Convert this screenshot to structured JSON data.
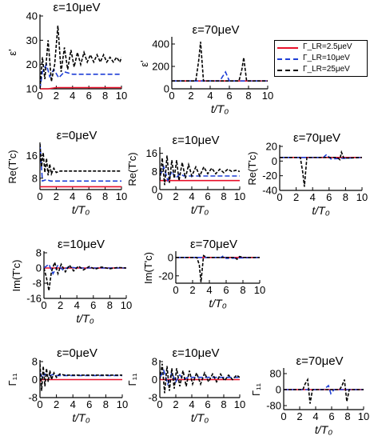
{
  "colors": {
    "red": "#e8102a",
    "blue": "#1f3fd6",
    "black": "#000000"
  },
  "legend": [
    {
      "label": "Γ_LR=2.5μeV",
      "color": "#e8102a",
      "dash": "solid"
    },
    {
      "label": "Γ_LR=10μeV",
      "color": "#1f3fd6",
      "dash": "dashed"
    },
    {
      "label": "Γ_LR=25μeV",
      "color": "#000000",
      "dash": "dashed"
    }
  ],
  "chart_data": [
    {
      "id": "p1",
      "type": "line",
      "title": "ε=10μeV",
      "ylabel": "ε'",
      "xlabel": "",
      "xlim": [
        0,
        10
      ],
      "ylim": [
        10,
        40
      ],
      "xticks": [
        0,
        2,
        4,
        6,
        8,
        10
      ],
      "yticks": [
        10,
        20,
        30,
        40
      ],
      "series": [
        {
          "name": "Γ_LR=2.5μeV",
          "x": [
            0,
            1,
            2,
            4,
            6,
            8,
            10
          ],
          "y": [
            10,
            10,
            10.5,
            10.5,
            10.5,
            10.5,
            10.5
          ]
        },
        {
          "name": "Γ_LR=10μeV",
          "x": [
            0,
            0.3,
            0.8,
            1.2,
            1.7,
            2.3,
            3,
            4,
            6,
            8,
            10
          ],
          "y": [
            10,
            17,
            20,
            15,
            18,
            14.5,
            17,
            16,
            16,
            16,
            16
          ]
        },
        {
          "name": "Γ_LR=25μeV",
          "x": [
            0,
            0.3,
            0.6,
            1,
            1.4,
            1.8,
            2.2,
            2.6,
            3,
            3.4,
            3.8,
            4.2,
            4.6,
            5,
            5.4,
            5.8,
            6.2,
            6.6,
            7,
            7.4,
            7.8,
            8.2,
            8.6,
            9,
            9.4,
            9.8,
            10
          ],
          "y": [
            10,
            23,
            14,
            30,
            13,
            20,
            36,
            17,
            27,
            18,
            26,
            19,
            25,
            20,
            25,
            21,
            24,
            21,
            24,
            21,
            24,
            21,
            23,
            21,
            23,
            21,
            23
          ]
        }
      ]
    },
    {
      "id": "p2",
      "type": "line",
      "title": "ε=70μeV",
      "ylabel": "ε'",
      "xlabel": "t/T₀",
      "xlim": [
        0,
        10
      ],
      "ylim": [
        0,
        450
      ],
      "xticks": [
        0,
        2,
        4,
        6,
        8,
        10
      ],
      "yticks": [
        0,
        200,
        400
      ],
      "series": [
        {
          "name": "Γ_LR=2.5μeV",
          "x": [
            0,
            10
          ],
          "y": [
            70,
            70
          ]
        },
        {
          "name": "Γ_LR=10μeV",
          "x": [
            0,
            5,
            5.3,
            5.6,
            6,
            10
          ],
          "y": [
            70,
            70,
            110,
            150,
            70,
            70
          ]
        },
        {
          "name": "Γ_LR=25μeV",
          "x": [
            0,
            2.5,
            2.8,
            3.0,
            3.3,
            7,
            7.3,
            7.5,
            7.8,
            10
          ],
          "y": [
            70,
            70,
            250,
            420,
            70,
            70,
            170,
            280,
            70,
            70
          ]
        }
      ]
    },
    {
      "id": "p3",
      "type": "line",
      "title": "ε=0μeV",
      "ylabel": "Re(T'c)",
      "xlabel": "t/T₀",
      "xlim": [
        0,
        10
      ],
      "ylim": [
        4,
        20
      ],
      "xticks": [
        0,
        2,
        4,
        6,
        8,
        10
      ],
      "yticks": [
        8,
        16
      ],
      "series": [
        {
          "name": "Γ_LR=2.5μeV",
          "x": [
            0,
            0.3,
            10
          ],
          "y": [
            5,
            5,
            5
          ]
        },
        {
          "name": "Γ_LR=10μeV",
          "x": [
            0,
            0.3,
            0.8,
            1.3,
            10
          ],
          "y": [
            20,
            7,
            7.5,
            7,
            7
          ]
        },
        {
          "name": "Γ_LR=25μeV",
          "x": [
            0,
            0.2,
            0.4,
            0.6,
            0.8,
            1,
            1.2,
            1.4,
            1.7,
            2,
            2.5,
            10
          ],
          "y": [
            20,
            12,
            17,
            10,
            15,
            9,
            13,
            9.5,
            11.5,
            10,
            10.5,
            10.5
          ]
        }
      ]
    },
    {
      "id": "p4",
      "type": "line",
      "title": "ε=10μeV",
      "ylabel": "Re(T'c)",
      "xlabel": "t/T₀",
      "xlim": [
        0,
        10
      ],
      "ylim": [
        0,
        18
      ],
      "xticks": [
        0,
        2,
        4,
        6,
        8,
        10
      ],
      "yticks": [
        0,
        8,
        16
      ],
      "series": [
        {
          "name": "Γ_LR=2.5μeV",
          "x": [
            0,
            10
          ],
          "y": [
            4,
            4
          ]
        },
        {
          "name": "Γ_LR=10μeV",
          "x": [
            0,
            0.5,
            1,
            1.5,
            2,
            2.5,
            3,
            10
          ],
          "y": [
            6,
            10,
            4,
            8,
            5,
            7,
            6,
            6
          ]
        },
        {
          "name": "Γ_LR=25μeV",
          "x": [
            0,
            0.3,
            0.6,
            0.9,
            1.2,
            1.5,
            1.8,
            2.1,
            2.4,
            2.8,
            3.2,
            3.6,
            4,
            4.5,
            5,
            5.5,
            6,
            6.5,
            7,
            7.5,
            8,
            8.5,
            9,
            9.5,
            10
          ],
          "y": [
            4,
            14,
            2,
            15,
            3,
            13,
            5,
            13,
            4,
            12,
            5,
            11,
            6,
            10,
            6,
            10,
            7,
            9.5,
            7,
            9,
            7.5,
            9,
            8,
            8.5,
            8
          ]
        }
      ]
    },
    {
      "id": "p5",
      "type": "line",
      "title": "ε=70μeV",
      "ylabel": "Re(T'c)",
      "xlabel": "t/T₀",
      "xlim": [
        0,
        10
      ],
      "ylim": [
        -40,
        20
      ],
      "xticks": [
        0,
        2,
        4,
        6,
        8,
        10
      ],
      "yticks": [
        -40,
        -20,
        0,
        20
      ],
      "series": [
        {
          "name": "Γ_LR=2.5μeV",
          "x": [
            0,
            10
          ],
          "y": [
            5,
            5
          ]
        },
        {
          "name": "Γ_LR=10μeV",
          "x": [
            0,
            5.3,
            5.7,
            6.2,
            10
          ],
          "y": [
            5,
            5,
            9,
            3,
            5
          ]
        },
        {
          "name": "Γ_LR=25μeV",
          "x": [
            0,
            2.5,
            2.8,
            3.0,
            3.3,
            7,
            7.3,
            7.5,
            7.8,
            10
          ],
          "y": [
            5,
            5,
            -15,
            -35,
            5,
            5,
            2,
            12,
            4,
            5
          ]
        }
      ]
    },
    {
      "id": "p6",
      "type": "line",
      "title": "ε=10μeV",
      "ylabel": "Im(T'c)",
      "xlabel": "t/T₀",
      "xlim": [
        0,
        10
      ],
      "ylim": [
        -16,
        8
      ],
      "xticks": [
        0,
        2,
        4,
        6,
        8,
        10
      ],
      "yticks": [
        -16,
        -8,
        0,
        8
      ],
      "series": [
        {
          "name": "Γ_LR=2.5μeV",
          "x": [
            0,
            10
          ],
          "y": [
            0,
            0
          ]
        },
        {
          "name": "Γ_LR=10μeV",
          "x": [
            0,
            0.6,
            1.1,
            1.7,
            2.3,
            3,
            4,
            10
          ],
          "y": [
            0,
            2,
            -3,
            1.5,
            -1,
            0.5,
            0,
            0
          ]
        },
        {
          "name": "Γ_LR=25μeV",
          "x": [
            0,
            0.3,
            0.6,
            0.9,
            1.3,
            1.7,
            2.1,
            2.6,
            3.1,
            3.6,
            4.2,
            4.8,
            5.5,
            6.2,
            7,
            8,
            9,
            10
          ],
          "y": [
            0,
            -5,
            -12,
            -2,
            3,
            -3,
            2,
            -2,
            1.5,
            -1.5,
            1,
            -1,
            0.8,
            -0.6,
            0.5,
            -0.4,
            0.3,
            0
          ]
        }
      ]
    },
    {
      "id": "p7",
      "type": "line",
      "title": "ε=70μeV",
      "ylabel": "Im(T'c)",
      "xlabel": "t/T₀",
      "xlim": [
        0,
        10
      ],
      "ylim": [
        -28,
        5
      ],
      "xticks": [
        0,
        2,
        4,
        6,
        8,
        10
      ],
      "yticks": [
        -20,
        0
      ],
      "series": [
        {
          "name": "Γ_LR=2.5μeV",
          "x": [
            0,
            10
          ],
          "y": [
            0,
            0
          ]
        },
        {
          "name": "Γ_LR=10μeV",
          "x": [
            0,
            5.4,
            5.7,
            6,
            10
          ],
          "y": [
            0,
            0,
            2,
            -1,
            0
          ]
        },
        {
          "name": "Γ_LR=25μeV",
          "x": [
            0,
            2.5,
            2.8,
            3.0,
            3.3,
            3.7,
            7,
            7.3,
            7.6,
            8,
            10
          ],
          "y": [
            0,
            0,
            -8,
            -27,
            2,
            0,
            0,
            -2,
            1,
            0,
            0
          ]
        }
      ]
    },
    {
      "id": "p8",
      "type": "line",
      "title": "ε=0μeV",
      "ylabel": "Γ₁₁",
      "xlabel": "t/T₀",
      "xlim": [
        0,
        10
      ],
      "ylim": [
        -8,
        8
      ],
      "xticks": [
        0,
        2,
        4,
        6,
        8,
        10
      ],
      "yticks": [
        -8,
        0,
        8
      ],
      "series": [
        {
          "name": "Γ_LR=2.5μeV",
          "x": [
            0,
            0.2,
            10
          ],
          "y": [
            -1,
            0,
            0
          ]
        },
        {
          "name": "Γ_LR=10μeV",
          "x": [
            0,
            0.3,
            0.6,
            1,
            1.5,
            2,
            10
          ],
          "y": [
            3,
            1,
            2.5,
            1.5,
            2.2,
            1.8,
            1.8
          ]
        },
        {
          "name": "Γ_LR=25μeV",
          "x": [
            0,
            0.2,
            0.4,
            0.6,
            0.8,
            1,
            1.2,
            1.4,
            1.7,
            2,
            2.4,
            3,
            10
          ],
          "y": [
            7,
            -5,
            6,
            -3,
            5,
            -1,
            4,
            0,
            3,
            1,
            2.5,
            2,
            2
          ]
        }
      ]
    },
    {
      "id": "p9",
      "type": "line",
      "title": "ε=10μeV",
      "ylabel": "Γ₁₁",
      "xlabel": "t/T₀",
      "xlim": [
        0,
        10
      ],
      "ylim": [
        -8,
        8
      ],
      "xticks": [
        0,
        2,
        4,
        6,
        8,
        10
      ],
      "yticks": [
        -8,
        0,
        8
      ],
      "series": [
        {
          "name": "Γ_LR=2.5μeV",
          "x": [
            0,
            10
          ],
          "y": [
            0,
            0
          ]
        },
        {
          "name": "Γ_LR=10μeV",
          "x": [
            0,
            0.5,
            1,
            1.5,
            2,
            2.5,
            3,
            3.5,
            10
          ],
          "y": [
            1,
            4,
            -2,
            3,
            -1,
            2,
            0,
            1,
            1
          ]
        },
        {
          "name": "Γ_LR=25μeV",
          "x": [
            0,
            0.3,
            0.6,
            0.9,
            1.2,
            1.5,
            1.8,
            2.1,
            2.5,
            2.9,
            3.3,
            3.7,
            4.1,
            4.6,
            5.1,
            5.6,
            6.1,
            6.6,
            7.1,
            7.6,
            8.1,
            8.6,
            9.1,
            9.6,
            10
          ],
          "y": [
            0,
            7,
            -6,
            6,
            -5,
            5,
            -4,
            5,
            -3,
            4,
            -3,
            4,
            -2,
            3,
            -2,
            3,
            -1,
            2.5,
            -1,
            2.5,
            -0.5,
            2,
            0,
            2,
            1
          ]
        }
      ]
    },
    {
      "id": "p10",
      "type": "line",
      "title": "ε=70μeV",
      "ylabel": "Γ₁₁",
      "xlabel": "t/T₀",
      "xlim": [
        0,
        10
      ],
      "ylim": [
        -100,
        100
      ],
      "xticks": [
        0,
        2,
        4,
        6,
        8,
        10
      ],
      "yticks": [
        -80,
        0,
        80
      ],
      "series": [
        {
          "name": "Γ_LR=2.5μeV",
          "x": [
            0,
            10
          ],
          "y": [
            0,
            0
          ]
        },
        {
          "name": "Γ_LR=10μeV",
          "x": [
            0,
            5,
            5.3,
            5.6,
            5.9,
            6.3,
            10
          ],
          "y": [
            0,
            0,
            10,
            20,
            -20,
            0,
            0
          ]
        },
        {
          "name": "Γ_LR=25μeV",
          "x": [
            0,
            2.4,
            2.7,
            3.0,
            3.3,
            3.6,
            7,
            7.3,
            7.6,
            7.9,
            8.2,
            10
          ],
          "y": [
            0,
            0,
            30,
            50,
            -70,
            0,
            0,
            20,
            50,
            -60,
            0,
            0
          ]
        }
      ]
    }
  ]
}
